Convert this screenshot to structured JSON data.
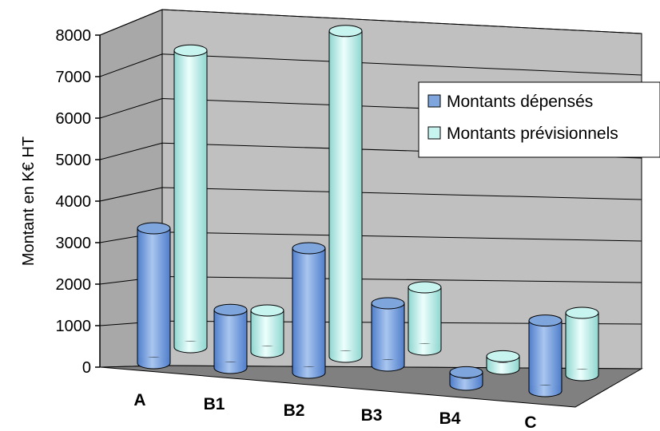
{
  "chart_data": {
    "type": "bar",
    "title": "",
    "xlabel": "",
    "ylabel": "Montant en K€ HT",
    "ylim": [
      0,
      8000
    ],
    "yticks": [
      "0",
      "1000",
      "2000",
      "3000",
      "4000",
      "5000",
      "6000",
      "7000",
      "8000"
    ],
    "categories": [
      "A",
      "B1",
      "B2",
      "B3",
      "B4",
      "C"
    ],
    "series": [
      {
        "name": "Montants dépensés",
        "values": [
          3250,
          1400,
          3000,
          1500,
          300,
          1700
        ],
        "color": "#7fa6dc"
      },
      {
        "name": "Montants prévisionnels",
        "values": [
          7150,
          1000,
          7850,
          1500,
          300,
          1500
        ],
        "color": "#c8f4f0"
      }
    ],
    "grid": true,
    "legend_position": "right",
    "style": "3d-cylinder"
  }
}
